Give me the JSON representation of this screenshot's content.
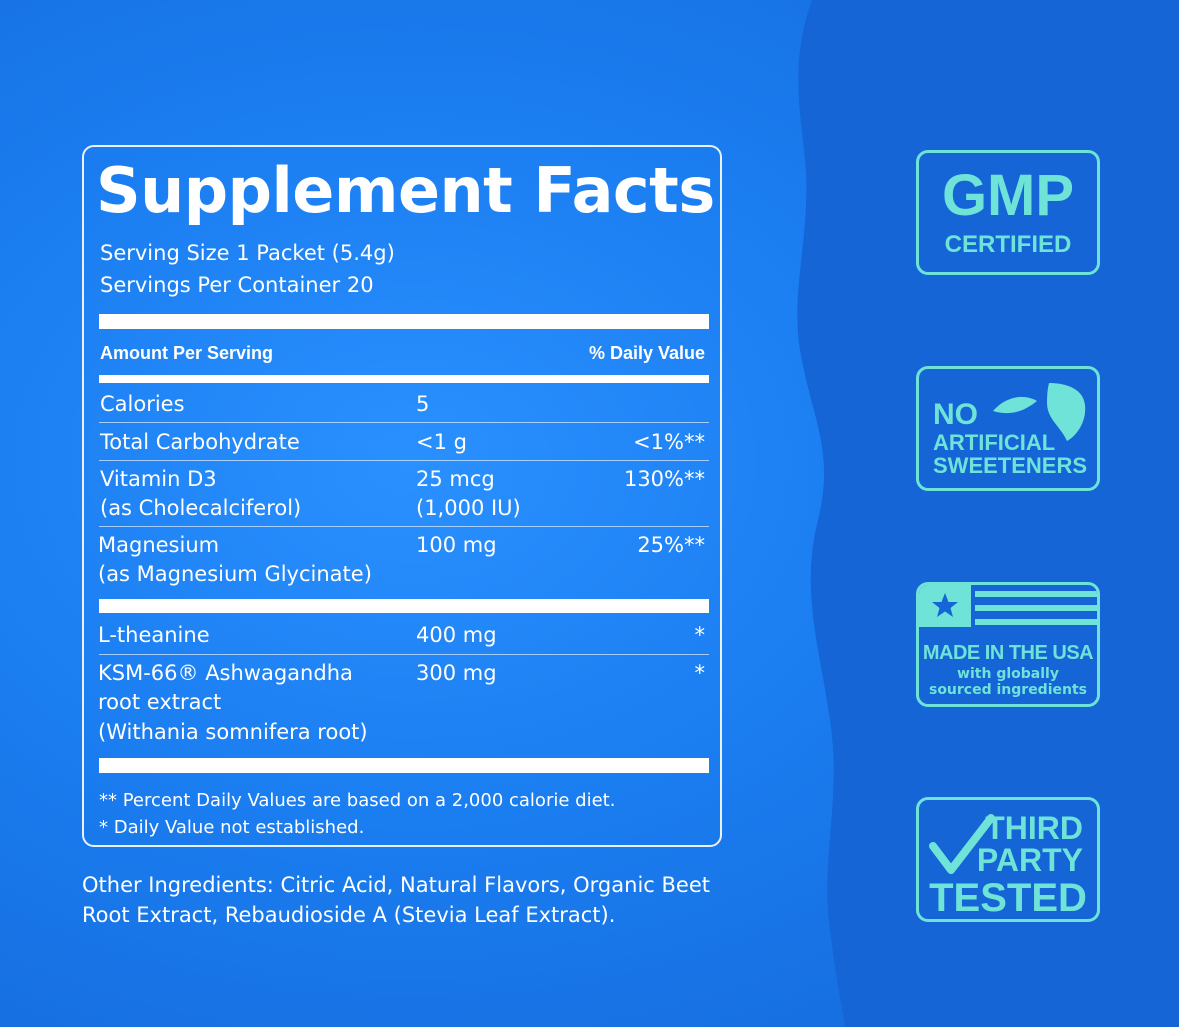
{
  "facts": {
    "title": "Supplement Facts",
    "serving_size": "Serving Size 1 Packet (5.4g)",
    "servings_per_container": "Servings Per Container 20",
    "header_amount": "Amount Per Serving",
    "header_daily": "% Daily Value",
    "rows": [
      {
        "name": "Calories",
        "name2": "",
        "name3": "",
        "amount": "5",
        "amount2": "",
        "dv": ""
      },
      {
        "name": "Total Carbohydrate",
        "name2": "",
        "name3": "",
        "amount": "<1 g",
        "amount2": "",
        "dv": "<1%**"
      },
      {
        "name": "Vitamin D3",
        "name2": "(as Cholecalciferol)",
        "name3": "",
        "amount": "25 mcg",
        "amount2": "(1,000 IU)",
        "dv": "130%**"
      },
      {
        "name": "Magnesium",
        "name2": "(as Magnesium Glycinate)",
        "name3": "",
        "amount": "100 mg",
        "amount2": "",
        "dv": "25%**"
      },
      {
        "name": "L-theanine",
        "name2": "",
        "name3": "",
        "amount": "400 mg",
        "amount2": "",
        "dv": "*"
      },
      {
        "name": "KSM-66® Ashwagandha",
        "name2": "root extract",
        "name3": "(Withania somnifera root)",
        "amount": "300 mg",
        "amount2": "",
        "dv": "*"
      }
    ],
    "footnote1": "** Percent Daily Values are based on a 2,000 calorie diet.",
    "footnote2": "* Daily Value not established."
  },
  "other_ingredients": "Other Ingredients: Citric Acid, Natural Flavors, Organic Beet Root Extract, Rebaudioside A (Stevia Leaf Extract).",
  "badges": {
    "gmp": {
      "line1": "GMP",
      "line2": "CERTIFIED"
    },
    "no_artificial": {
      "line1": "NO",
      "line2": "ARTIFICIAL",
      "line3": "SWEETENERS",
      "icon": "leaf-icon"
    },
    "usa": {
      "line1": "MADE IN THE USA",
      "line2": "with globally",
      "line3": "sourced ingredients",
      "icon": "flag-icon"
    },
    "third_party": {
      "line1": "THIRD",
      "line2": "PARTY",
      "line3": "TESTED",
      "icon": "checkmark-icon"
    }
  },
  "colors": {
    "background": "#1a7df0",
    "background_dark": "#1565d6",
    "badge": "#6fe3d8",
    "text": "#ffffff"
  }
}
